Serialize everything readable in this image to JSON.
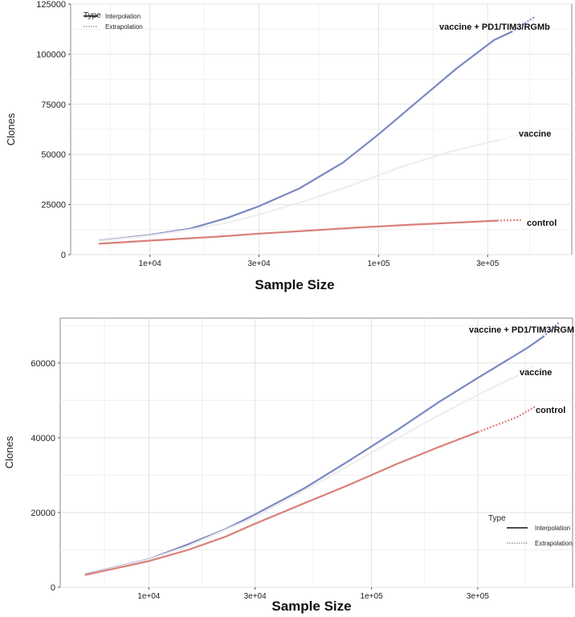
{
  "chart_data": [
    {
      "type": "line",
      "xlabel": "Sample Size",
      "ylabel": "Clones",
      "x_scale": "log",
      "xlim": [
        4500,
        700000
      ],
      "ylim": [
        0,
        125000
      ],
      "x_ticks": [
        10000,
        30000,
        100000,
        300000
      ],
      "x_tick_labels": [
        "1e+04",
        "3e+04",
        "1e+05",
        "3e+05"
      ],
      "y_ticks": [
        0,
        25000,
        50000,
        75000,
        100000,
        125000
      ],
      "y_tick_labels": [
        "0",
        "25000",
        "50000",
        "75000",
        "100000",
        "125000"
      ],
      "grid": true,
      "legend": {
        "placement": "top-left",
        "title": "Type",
        "entries": [
          "Interpolation",
          "Extrapolation"
        ]
      },
      "series": [
        {
          "name": "vaccine + PD1/TIM3/RGMb",
          "color": "#7b88c2",
          "interpolation": [
            [
              6000,
              7000
            ],
            [
              10000,
              9800
            ],
            [
              15000,
              13000
            ],
            [
              22000,
              18500
            ],
            [
              30000,
              24200
            ],
            [
              45000,
              33000
            ],
            [
              70000,
              46000
            ],
            [
              100000,
              60000
            ],
            [
              150000,
              77000
            ],
            [
              220000,
              93000
            ],
            [
              320000,
              107000
            ],
            [
              380000,
              111000
            ]
          ],
          "extrapolation": [
            [
              380000,
              111000
            ],
            [
              480000,
              118500
            ]
          ]
        },
        {
          "name": "vaccine",
          "color": "#eeeeee",
          "interpolation": [
            [
              6000,
              6800
            ],
            [
              10000,
              9500
            ],
            [
              15000,
              12500
            ],
            [
              22000,
              16000
            ],
            [
              30000,
              20000
            ],
            [
              50000,
              27500
            ],
            [
              80000,
              35500
            ],
            [
              120000,
              43000
            ],
            [
              200000,
              51000
            ],
            [
              330000,
              57000
            ]
          ],
          "extrapolation": [
            [
              330000,
              57000
            ],
            [
              450000,
              61000
            ]
          ]
        },
        {
          "name": "control",
          "color": "#d97f78",
          "interpolation": [
            [
              6000,
              5500
            ],
            [
              10000,
              7000
            ],
            [
              20000,
              9000
            ],
            [
              30000,
              10500
            ],
            [
              50000,
              12000
            ],
            [
              80000,
              13500
            ],
            [
              130000,
              14800
            ],
            [
              200000,
              15800
            ],
            [
              330000,
              17000
            ]
          ],
          "extrapolation": [
            [
              330000,
              17000
            ],
            [
              420000,
              17300
            ]
          ]
        }
      ]
    },
    {
      "type": "line",
      "xlabel": "Sample Size",
      "ylabel": "Clones",
      "x_scale": "log",
      "xlim": [
        4000,
        800000
      ],
      "ylim": [
        0,
        72000
      ],
      "x_ticks": [
        10000,
        30000,
        100000,
        300000
      ],
      "x_tick_labels": [
        "1e+04",
        "3e+04",
        "1e+05",
        "3e+05"
      ],
      "y_ticks": [
        0,
        20000,
        40000,
        60000
      ],
      "y_tick_labels": [
        "0",
        "20000",
        "40000",
        "60000"
      ],
      "grid": true,
      "legend": {
        "placement": "bottom-right",
        "title": "Type",
        "entries": [
          "Interpolation",
          "Extrapolation"
        ]
      },
      "series": [
        {
          "name": "vaccine + PD1/TIM3/RGM",
          "color": "#7b88c2",
          "interpolation": [
            [
              5200,
              3500
            ],
            [
              10000,
              7500
            ],
            [
              15000,
              11500
            ],
            [
              22000,
              15500
            ],
            [
              30000,
              19500
            ],
            [
              50000,
              26500
            ],
            [
              80000,
              34000
            ],
            [
              130000,
              42000
            ],
            [
              200000,
              49500
            ],
            [
              300000,
              56000
            ],
            [
              500000,
              64000
            ],
            [
              590000,
              67000
            ]
          ],
          "extrapolation": [
            [
              590000,
              67000
            ],
            [
              700000,
              71000
            ]
          ]
        },
        {
          "name": "vaccine",
          "color": "#eeeeee",
          "interpolation": [
            [
              5200,
              3400
            ],
            [
              10000,
              7400
            ],
            [
              15000,
              11000
            ],
            [
              30000,
              18800
            ],
            [
              60000,
              28500
            ],
            [
              100000,
              36000
            ],
            [
              200000,
              46000
            ],
            [
              350000,
              53500
            ],
            [
              450000,
              56500
            ]
          ],
          "extrapolation": [
            [
              450000,
              56500
            ],
            [
              560000,
              60000
            ]
          ]
        },
        {
          "name": "control",
          "color": "#d97f78",
          "interpolation": [
            [
              5200,
              3300
            ],
            [
              10000,
              7000
            ],
            [
              15000,
              10000
            ],
            [
              22000,
              13500
            ],
            [
              30000,
              17000
            ],
            [
              50000,
              22500
            ],
            [
              80000,
              27500
            ],
            [
              130000,
              33000
            ],
            [
              200000,
              37500
            ],
            [
              300000,
              41500
            ]
          ],
          "extrapolation": [
            [
              300000,
              41500
            ],
            [
              450000,
              45500
            ],
            [
              550000,
              48500
            ]
          ]
        }
      ]
    }
  ]
}
